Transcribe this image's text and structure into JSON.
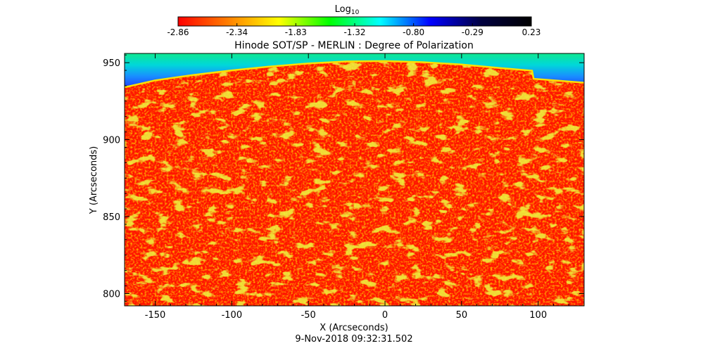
{
  "chart_data": {
    "type": "heatmap",
    "title": "Hinode SOT/SP - MERLIN : Degree of Polarization",
    "subtitle": "9-Nov-2018 09:32:31.502",
    "xlabel": "X (Arcseconds)",
    "ylabel": "Y (Arcseconds)",
    "xlim": [
      -170,
      130
    ],
    "ylim": [
      792,
      956
    ],
    "x_ticks": [
      -150,
      -100,
      -50,
      0,
      50,
      100
    ],
    "y_ticks": [
      800,
      850,
      900,
      950
    ],
    "grid": false,
    "colorbar": {
      "label_base": "Log",
      "label_sub": "10",
      "ticks": [
        "-2.86",
        "-2.34",
        "-1.83",
        "-1.32",
        "-0.80",
        "-0.29",
        "0.23"
      ],
      "range": [
        -2.86,
        0.23
      ],
      "colormap": [
        "#ff0000",
        "#ff8000",
        "#ffff00",
        "#00ff00",
        "#00ffff",
        "#0000ff",
        "#000040",
        "#000000"
      ],
      "position": "top"
    },
    "field_color": "#ff1400",
    "limb": {
      "x": [
        -170,
        -150,
        -125,
        -100,
        -75,
        -50,
        -25,
        0,
        25,
        50,
        75,
        96,
        97,
        110,
        130
      ],
      "y": [
        934,
        938.5,
        942,
        945,
        947.5,
        949.5,
        950.8,
        951,
        950.3,
        948.8,
        946.5,
        944.8,
        939.5,
        938.5,
        937
      ],
      "limb_color": "#ffe000",
      "sky_colors": [
        "#10e890",
        "#00d8d8",
        "#1890ff",
        "#2040ff"
      ]
    }
  }
}
